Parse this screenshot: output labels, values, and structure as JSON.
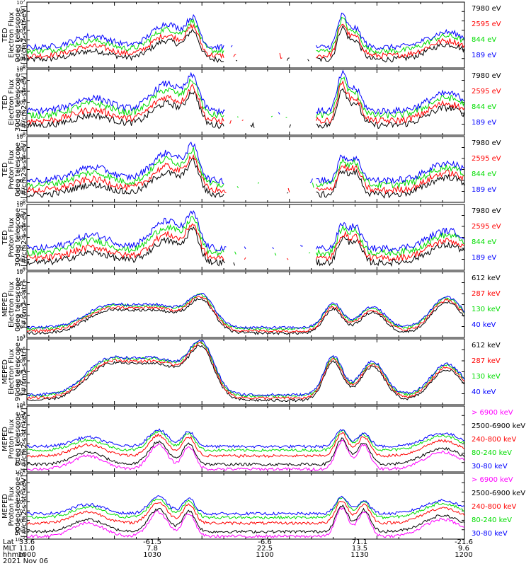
{
  "date_label": "2021 Nov 06",
  "x_axis_rows": [
    {
      "name": "Lat",
      "values": [
        "33.6",
        "-61.5",
        "-6.6",
        "71.1",
        "-21.6"
      ]
    },
    {
      "name": "MLT",
      "values": [
        "11.0",
        "7.8",
        "22.5",
        "13.5",
        "9.6"
      ]
    },
    {
      "name": "hhmm",
      "values": [
        "1000",
        "1030",
        "1100",
        "1130",
        "1200"
      ]
    }
  ],
  "colors": {
    "black": "#000000",
    "red": "#ff0000",
    "green": "#00dd00",
    "blue": "#0000ff",
    "magenta": "#ff00ff"
  },
  "chart_data": [
    {
      "type": "line",
      "ylabel": [
        "TED",
        "Electron Flux",
        "0deg telescope",
        "[#/cm2-s-str-eV]"
      ],
      "ylog_range": [
        0,
        7
      ],
      "series": [
        {
          "name": "7980 eV",
          "color": "black"
        },
        {
          "name": "2595 eV",
          "color": "red"
        },
        {
          "name": "844 eV",
          "color": "green"
        },
        {
          "name": "189 eV",
          "color": "blue"
        }
      ]
    },
    {
      "type": "line",
      "ylabel": [
        "TED",
        "Electron Flux",
        "30deg telescope",
        "[#/cm2-s-str-eV]"
      ],
      "ylog_range": [
        0,
        6
      ],
      "series": [
        {
          "name": "7980 eV",
          "color": "black"
        },
        {
          "name": "2595 eV",
          "color": "red"
        },
        {
          "name": "844 eV",
          "color": "green"
        },
        {
          "name": "189 eV",
          "color": "blue"
        }
      ]
    },
    {
      "type": "line",
      "ylabel": [
        "TED",
        "Proton Flux",
        "0deg telescope",
        "[#/cm2-s-str-eV]"
      ],
      "ylog_range": [
        0,
        6
      ],
      "series": [
        {
          "name": "7980 eV",
          "color": "black"
        },
        {
          "name": "2595 eV",
          "color": "red"
        },
        {
          "name": "844 eV",
          "color": "green"
        },
        {
          "name": "189 eV",
          "color": "blue"
        }
      ]
    },
    {
      "type": "line",
      "ylabel": [
        "TED",
        "Proton Flux",
        "30deg telescope",
        "[#/cm2-s-str-eV]"
      ],
      "ylog_range": [
        0,
        6
      ],
      "series": [
        {
          "name": "7980 eV",
          "color": "black"
        },
        {
          "name": "2595 eV",
          "color": "red"
        },
        {
          "name": "844 eV",
          "color": "green"
        },
        {
          "name": "189 eV",
          "color": "blue"
        }
      ]
    },
    {
      "type": "line",
      "ylabel": [
        "MEPED",
        "Electron Flux",
        "0deg telescope",
        "[#/cm2-s-str]"
      ],
      "ylog_range": [
        1,
        7
      ],
      "series": [
        {
          "name": "612 keV",
          "color": "black"
        },
        {
          "name": "287 keV",
          "color": "red"
        },
        {
          "name": "130 keV",
          "color": "green"
        },
        {
          "name": "40 keV",
          "color": "blue"
        }
      ]
    },
    {
      "type": "line",
      "ylabel": [
        "MEPED",
        "Electron Flux",
        "90deg telescope",
        "[#/cm2-s-str]"
      ],
      "ylog_range": [
        1,
        7
      ],
      "series": [
        {
          "name": "612 keV",
          "color": "black"
        },
        {
          "name": "287 keV",
          "color": "red"
        },
        {
          "name": "130 keV",
          "color": "green"
        },
        {
          "name": "40 keV",
          "color": "blue"
        }
      ]
    },
    {
      "type": "line",
      "ylabel": [
        "MEPED",
        "Proton Flux",
        "0deg telescope",
        "[#/cm2-s-str-keV]"
      ],
      "ylog_range": [
        -2,
        5
      ],
      "series": [
        {
          "name": "> 6900 keV",
          "color": "magenta"
        },
        {
          "name": "2500-6900 keV",
          "color": "black"
        },
        {
          "name": "240-800 keV",
          "color": "red"
        },
        {
          "name": "80-240 keV",
          "color": "green"
        },
        {
          "name": "30-80 keV",
          "color": "blue"
        }
      ]
    },
    {
      "type": "line",
      "ylabel": [
        "MEPED",
        "Proton Flux",
        "90deg telescope",
        "[#/cm2-s-str-keV]"
      ],
      "ylog_range": [
        -2,
        5
      ],
      "series": [
        {
          "name": "> 6900 keV",
          "color": "magenta"
        },
        {
          "name": "2500-6900 keV",
          "color": "black"
        },
        {
          "name": "240-800 keV",
          "color": "red"
        },
        {
          "name": "80-240 keV",
          "color": "green"
        },
        {
          "name": "30-80 keV",
          "color": "blue"
        }
      ]
    }
  ]
}
